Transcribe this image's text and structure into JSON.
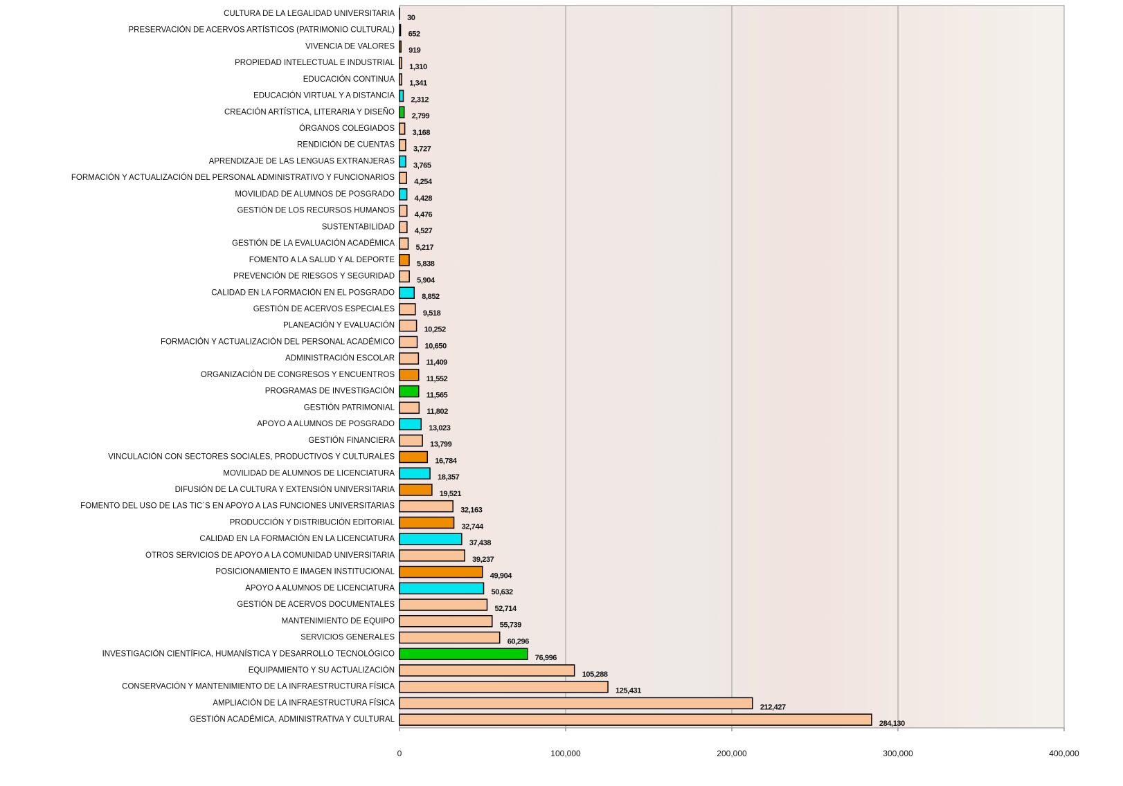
{
  "chart_data": {
    "type": "barh",
    "categories": [
      "CULTURA DE LA LEGALIDAD UNIVERSITARIA",
      "PRESERVACIÓN DE ACERVOS ARTÍSTICOS (PATRIMONIO CULTURAL)",
      "VIVENCIA DE VALORES",
      "PROPIEDAD INTELECTUAL E INDUSTRIAL",
      "EDUCACIÓN CONTINUA",
      "EDUCACIÓN VIRTUAL Y A DISTANCIA",
      "CREACIÓN ARTÍSTICA, LITERARIA Y DISEÑO",
      "ÓRGANOS COLEGIADOS",
      "RENDICIÓN DE CUENTAS",
      "APRENDIZAJE DE LAS LENGUAS EXTRANJERAS",
      "FORMACIÓN Y ACTUALIZACIÓN DEL PERSONAL ADMINISTRATIVO Y FUNCIONARIOS",
      "MOVILIDAD DE ALUMNOS DE POSGRADO",
      "GESTIÓN DE LOS RECURSOS HUMANOS",
      "SUSTENTABILIDAD",
      "GESTIÓN DE LA EVALUACIÓN ACADÉMICA",
      "FOMENTO A LA SALUD Y AL DEPORTE",
      "PREVENCIÓN DE RIESGOS Y SEGURIDAD",
      "CALIDAD EN LA FORMACIÓN EN EL POSGRADO",
      "GESTIÓN DE ACERVOS ESPECIALES",
      "PLANEACIÓN Y EVALUACIÓN",
      "FORMACIÓN Y ACTUALIZACIÓN DEL PERSONAL ACADÉMICO",
      "ADMINISTRACIÓN ESCOLAR",
      "ORGANIZACIÓN DE CONGRESOS Y ENCUENTROS",
      "PROGRAMAS DE INVESTIGACIÓN",
      "GESTIÓN PATRIMONIAL",
      "APOYO A ALUMNOS DE POSGRADO",
      "GESTIÓN FINANCIERA",
      "VINCULACIÓN CON SECTORES SOCIALES, PRODUCTIVOS Y CULTURALES",
      "MOVILIDAD DE ALUMNOS DE LICENCIATURA",
      "DIFUSIÓN DE LA CULTURA Y EXTENSIÓN UNIVERSITARIA",
      "FOMENTO DEL USO DE LAS TIC´S EN APOYO A LAS FUNCIONES UNIVERSITARIAS",
      "PRODUCCIÓN Y DISTRIBUCIÓN EDITORIAL",
      "CALIDAD EN LA FORMACIÓN EN LA LICENCIATURA",
      "OTROS SERVICIOS DE APOYO A LA COMUNIDAD UNIVERSITARIA",
      "POSICIONAMIENTO E IMAGEN INSTITUCIONAL",
      "APOYO A ALUMNOS DE LICENCIATURA",
      "GESTIÓN DE ACERVOS DOCUMENTALES",
      "MANTENIMIENTO DE EQUIPO",
      "SERVICIOS GENERALES",
      "INVESTIGACIÓN CIENTÍFICA, HUMANÍSTICA Y DESARROLLO TECNOLÓGICO",
      "EQUIPAMIENTO Y SU ACTUALIZACIÓN",
      "CONSERVACIÓN Y MANTENIMIENTO DE LA INFRAESTRUCTURA FÍSICA",
      "AMPLIACIÓN DE LA INFRAESTRUCTURA FÍSICA",
      "GESTIÓN ACADÉMICA, ADMINISTRATIVA Y CULTURAL"
    ],
    "values": [
      30,
      652,
      919,
      1310,
      1341,
      2312,
      2799,
      3168,
      3727,
      3765,
      4254,
      4428,
      4476,
      4527,
      5217,
      5838,
      5904,
      8852,
      9518,
      10252,
      10650,
      11409,
      11552,
      11565,
      11802,
      13023,
      13799,
      16784,
      18357,
      19521,
      32163,
      32744,
      37438,
      39237,
      49904,
      50632,
      52714,
      55739,
      60296,
      76996,
      105288,
      125431,
      212427,
      284130
    ],
    "value_labels": [
      "30",
      "652",
      "919",
      "1,310",
      "1,341",
      "2,312",
      "2,799",
      "3,168",
      "3,727",
      "3,765",
      "4,254",
      "4,428",
      "4,476",
      "4,527",
      "5,217",
      "5,838",
      "5,904",
      "8,852",
      "9,518",
      "10,252",
      "10,650",
      "11,409",
      "11,552",
      "11,565",
      "11,802",
      "13,023",
      "13,799",
      "16,784",
      "18,357",
      "19,521",
      "32,163",
      "32,744",
      "37,438",
      "39,237",
      "49,904",
      "50,632",
      "52,714",
      "55,739",
      "60,296",
      "76,996",
      "105,288",
      "125,431",
      "212,427",
      "284,130"
    ],
    "colors": [
      "#f9c49a",
      "#f9c49a",
      "#f08c00",
      "#f9c49a",
      "#f9c49a",
      "#00e5ee",
      "#00cc00",
      "#f9c49a",
      "#f9c49a",
      "#00e5ee",
      "#f9c49a",
      "#00e5ee",
      "#f9c49a",
      "#f9c49a",
      "#f9c49a",
      "#f08c00",
      "#f9c49a",
      "#00e5ee",
      "#f9c49a",
      "#f9c49a",
      "#f9c49a",
      "#f9c49a",
      "#f08c00",
      "#00cc00",
      "#f9c49a",
      "#00e5ee",
      "#f9c49a",
      "#f08c00",
      "#00e5ee",
      "#f08c00",
      "#f9c49a",
      "#f08c00",
      "#00e5ee",
      "#f9c49a",
      "#f08c00",
      "#00e5ee",
      "#f9c49a",
      "#f9c49a",
      "#f9c49a",
      "#00cc00",
      "#f9c49a",
      "#f9c49a",
      "#f9c49a",
      "#f9c49a"
    ],
    "xlim": [
      0,
      400000
    ],
    "xticks": [
      0,
      {
        "value": 100000,
        "label": "100,000"
      },
      {
        "value": 200000,
        "label": "200,000"
      },
      {
        "value": 300000,
        "label": "300,000"
      },
      {
        "value": 400000,
        "label": "400,000"
      }
    ],
    "grid": true
  }
}
